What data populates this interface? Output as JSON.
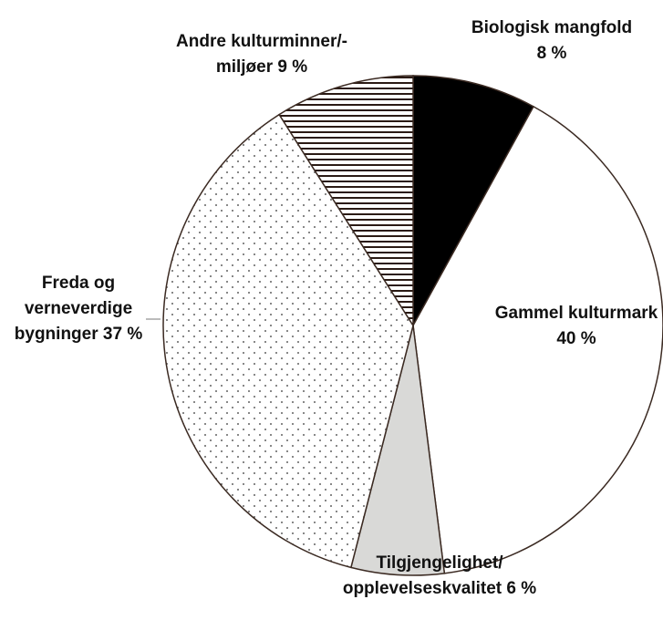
{
  "chart_data": {
    "type": "pie",
    "categories": [
      "Biologisk mangfold",
      "Gammel kulturmark",
      "Tilgjengelighet/ opplevelseskvalitet",
      "Freda og verneverdige bygninger",
      "Andre kulturminner/-miljøer"
    ],
    "values": [
      8,
      40,
      6,
      37,
      9
    ],
    "value_labels": [
      "8 %",
      "40 %",
      "6 %",
      "37 %",
      "9 %"
    ],
    "colors": [
      "#000000",
      "#ffffff",
      "#d9d9d7",
      "#ffffff",
      "#ffffff"
    ],
    "patterns": [
      "solid",
      "solid",
      "solid",
      "dots",
      "horizontal-lines"
    ],
    "start_angle": 0,
    "direction": "clockwise"
  }
}
